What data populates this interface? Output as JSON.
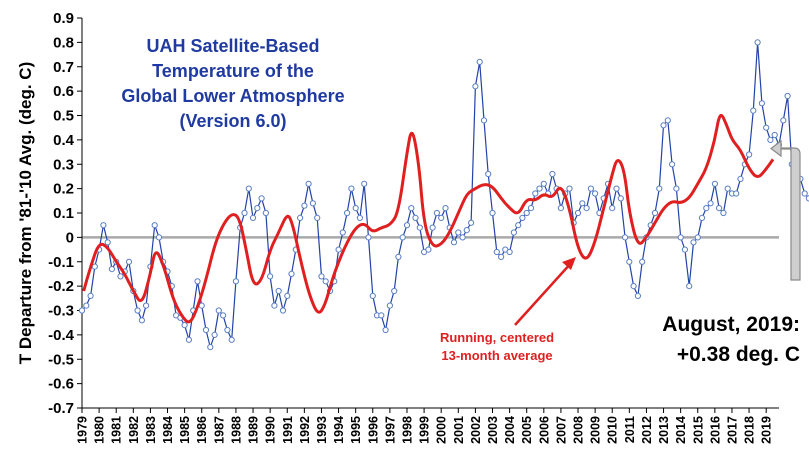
{
  "chart_data": {
    "type": "line",
    "title": [
      "UAH Satellite-Based",
      "Temperature of the",
      "Global Lower Atmosphere",
      "(Version 6.0)"
    ],
    "ylabel": "T Departure from '81-'10 Avg. (deg. C)",
    "xlabel": "",
    "ylim": [
      -0.7,
      0.9
    ],
    "yticks": [
      "0.9",
      "0.8",
      "0.7",
      "0.6",
      "0.5",
      "0.4",
      "0.3",
      "0.2",
      "0.1",
      "0",
      "-0.1",
      "-0.2",
      "-0.3",
      "-0.4",
      "-0.5",
      "-0.6",
      "-0.7"
    ],
    "ytick_values": [
      0.9,
      0.8,
      0.7,
      0.6,
      0.5,
      0.4,
      0.3,
      0.2,
      0.1,
      0,
      -0.1,
      -0.2,
      -0.3,
      -0.4,
      -0.5,
      -0.6,
      -0.7
    ],
    "xticks": [
      "1979",
      "1980",
      "1981",
      "1982",
      "1983",
      "1984",
      "1985",
      "1986",
      "1987",
      "1988",
      "1989",
      "1990",
      "1991",
      "1992",
      "1993",
      "1994",
      "1995",
      "1996",
      "1997",
      "1998",
      "1999",
      "2000",
      "2001",
      "2002",
      "2003",
      "2004",
      "2005",
      "2006",
      "2007",
      "2008",
      "2009",
      "2010",
      "2011",
      "2012",
      "2013",
      "2014",
      "2015",
      "2016",
      "2017",
      "2018",
      "2019"
    ],
    "xtick_years": [
      1979,
      1980,
      1981,
      1982,
      1983,
      1984,
      1985,
      1986,
      1987,
      1988,
      1989,
      1990,
      1991,
      1992,
      1993,
      1994,
      1995,
      1996,
      1997,
      1998,
      1999,
      2000,
      2001,
      2002,
      2003,
      2004,
      2005,
      2006,
      2007,
      2008,
      2009,
      2010,
      2011,
      2012,
      2013,
      2014,
      2015,
      2016,
      2017,
      2018,
      2019
    ],
    "x_range": [
      1979.0,
      2019.75
    ],
    "grid": false,
    "annotation_running": [
      "Running, centered",
      "13-month average"
    ],
    "latest_label": [
      "August, 2019:",
      "+0.38 deg. C"
    ],
    "series": [
      {
        "kind": "monthly",
        "x_start": 1979.0,
        "x_step": 0.25,
        "values": [
          -0.3,
          -0.28,
          -0.24,
          -0.12,
          -0.05,
          0.05,
          -0.02,
          -0.13,
          -0.1,
          -0.16,
          -0.14,
          -0.1,
          -0.22,
          -0.3,
          -0.34,
          -0.28,
          -0.12,
          0.05,
          0.0,
          -0.1,
          -0.14,
          -0.2,
          -0.32,
          -0.33,
          -0.36,
          -0.42,
          -0.3,
          -0.18,
          -0.28,
          -0.38,
          -0.45,
          -0.4,
          -0.3,
          -0.32,
          -0.38,
          -0.42,
          -0.18,
          0.04,
          0.1,
          0.2,
          0.08,
          0.12,
          0.16,
          0.1,
          -0.16,
          -0.28,
          -0.22,
          -0.3,
          -0.24,
          -0.15,
          -0.05,
          0.08,
          0.13,
          0.22,
          0.14,
          0.08,
          -0.16,
          -0.18,
          -0.22,
          -0.18,
          -0.05,
          0.02,
          0.1,
          0.2,
          0.12,
          0.08,
          0.22,
          0.0,
          -0.24,
          -0.32,
          -0.32,
          -0.38,
          -0.28,
          -0.22,
          -0.08,
          0.0,
          0.05,
          0.12,
          0.08,
          0.04,
          -0.06,
          -0.05,
          0.04,
          0.1,
          0.08,
          0.12,
          0.04,
          -0.02,
          0.02,
          0.0,
          0.03,
          0.06,
          0.62,
          0.72,
          0.48,
          0.26,
          0.1,
          -0.06,
          -0.08,
          -0.05,
          -0.06,
          0.02,
          0.05,
          0.08,
          0.1,
          0.12,
          0.18,
          0.2,
          0.22,
          0.18,
          0.26,
          0.2,
          0.12,
          0.18,
          0.2,
          0.06,
          0.1,
          0.14,
          0.12,
          0.2,
          0.18,
          0.1,
          0.16,
          0.22,
          0.12,
          0.2,
          0.16,
          0.0,
          -0.1,
          -0.2,
          -0.24,
          -0.1,
          0.0,
          0.05,
          0.1,
          0.2,
          0.46,
          0.48,
          0.3,
          0.2,
          0.0,
          -0.05,
          -0.2,
          -0.02,
          0.0,
          0.08,
          0.12,
          0.14,
          0.22,
          0.12,
          0.1,
          0.2,
          0.18,
          0.18,
          0.24,
          0.3,
          0.34,
          0.52,
          0.8,
          0.55,
          0.45,
          0.4,
          0.42,
          0.38,
          0.48,
          0.58,
          0.3,
          0.3,
          0.24,
          0.18,
          0.16,
          0.25,
          0.3,
          0.38,
          0.4,
          0.44,
          0.38
        ]
      },
      {
        "kind": "running_mean",
        "x": [
          1979.1,
          1979.5,
          1980.0,
          1980.5,
          1981.0,
          1981.5,
          1982.0,
          1982.5,
          1983.0,
          1983.3,
          1983.8,
          1984.3,
          1984.8,
          1985.3,
          1985.8,
          1986.3,
          1986.8,
          1987.3,
          1987.8,
          1988.2,
          1988.6,
          1989.0,
          1989.5,
          1990.0,
          1990.5,
          1991.0,
          1991.3,
          1991.8,
          1992.3,
          1992.8,
          1993.2,
          1993.6,
          1994.0,
          1994.5,
          1995.0,
          1995.5,
          1996.0,
          1996.5,
          1997.0,
          1997.5,
          1998.0,
          1998.3,
          1998.7,
          1999.0,
          1999.5,
          2000.0,
          2000.5,
          2001.0,
          2001.5,
          2002.0,
          2002.5,
          2003.0,
          2003.5,
          2004.0,
          2004.5,
          2005.0,
          2005.5,
          2006.0,
          2006.5,
          2007.0,
          2007.5,
          2008.0,
          2008.5,
          2009.0,
          2009.5,
          2010.0,
          2010.3,
          2010.7,
          2011.0,
          2011.5,
          2012.0,
          2012.5,
          2013.0,
          2013.5,
          2014.0,
          2014.5,
          2015.0,
          2015.5,
          2016.0,
          2016.3,
          2016.7,
          2017.0,
          2017.5,
          2018.0,
          2018.5,
          2019.0,
          2019.4
        ],
        "values": [
          -0.22,
          -0.12,
          -0.02,
          -0.04,
          -0.1,
          -0.15,
          -0.22,
          -0.28,
          -0.15,
          -0.04,
          -0.12,
          -0.25,
          -0.32,
          -0.36,
          -0.28,
          -0.16,
          -0.02,
          0.06,
          0.1,
          0.08,
          -0.05,
          -0.2,
          -0.18,
          -0.05,
          0.02,
          0.1,
          0.06,
          -0.1,
          -0.24,
          -0.32,
          -0.28,
          -0.18,
          -0.1,
          -0.02,
          0.04,
          0.06,
          0.02,
          0.04,
          0.05,
          0.1,
          0.35,
          0.46,
          0.3,
          0.05,
          -0.04,
          -0.03,
          0.02,
          0.1,
          0.18,
          0.2,
          0.22,
          0.21,
          0.16,
          0.12,
          0.09,
          0.16,
          0.15,
          0.18,
          0.16,
          0.22,
          0.12,
          -0.05,
          -0.1,
          -0.02,
          0.12,
          0.26,
          0.33,
          0.28,
          0.1,
          -0.04,
          0.0,
          0.06,
          0.12,
          0.15,
          0.14,
          0.16,
          0.22,
          0.28,
          0.4,
          0.52,
          0.46,
          0.4,
          0.36,
          0.28,
          0.24,
          0.28,
          0.32
        ]
      }
    ]
  }
}
